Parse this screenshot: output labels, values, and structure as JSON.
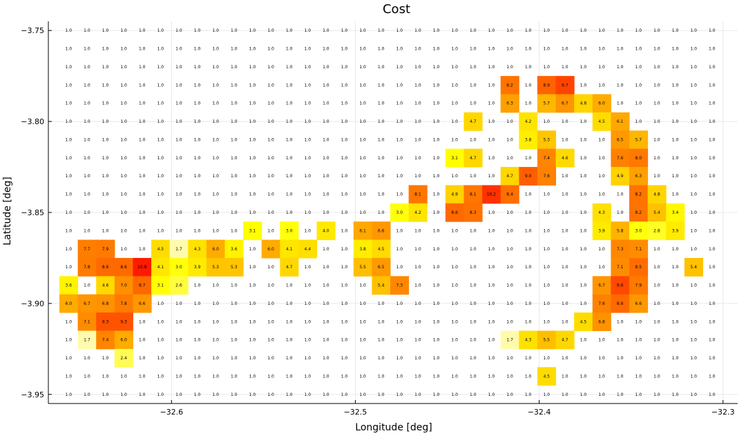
{
  "chart_data": {
    "type": "heatmap",
    "title": "Cost",
    "xlabel": "Longitude [deg]",
    "ylabel": "Latitude [deg]",
    "xlim": [
      -32.667,
      -32.292
    ],
    "ylim": [
      -3.955,
      -3.745
    ],
    "x_ticks": [
      -32.6,
      -32.5,
      -32.4,
      -32.3
    ],
    "x_tick_labels": [
      "−32.6",
      "−32.5",
      "−32.4",
      "−32.3"
    ],
    "y_ticks": [
      -3.75,
      -3.8,
      -3.85,
      -3.9,
      -3.95
    ],
    "y_tick_labels": [
      "−3.75",
      "−3.80",
      "−3.85",
      "−3.90",
      "−3.95"
    ],
    "x_centers": [
      -32.656,
      -32.646,
      -32.636,
      -32.626,
      -32.616,
      -32.606,
      -32.596,
      -32.586,
      -32.576,
      -32.566,
      -32.556,
      -32.546,
      -32.536,
      -32.526,
      -32.516,
      -32.506,
      -32.496,
      -32.486,
      -32.476,
      -32.466,
      -32.456,
      -32.446,
      -32.436,
      -32.426,
      -32.416,
      -32.406,
      -32.396,
      -32.386,
      -32.376,
      -32.366,
      -32.356,
      -32.346,
      -32.336,
      -32.326,
      -32.316,
      -32.306
    ],
    "y_centers": [
      -3.75,
      -3.76,
      -3.77,
      -3.78,
      -3.79,
      -3.8,
      -3.81,
      -3.82,
      -3.83,
      -3.84,
      -3.85,
      -3.86,
      -3.87,
      -3.88,
      -3.89,
      -3.9,
      -3.91,
      -3.92,
      -3.93,
      -3.94,
      -3.95
    ],
    "values": [
      [
        1.0,
        1.0,
        1.0,
        1.0,
        1.0,
        1.0,
        1.0,
        1.0,
        1.0,
        1.0,
        1.0,
        1.0,
        1.0,
        1.0,
        1.0,
        1.0,
        1.0,
        1.0,
        1.0,
        1.0,
        1.0,
        1.0,
        1.0,
        1.0,
        1.0,
        1.0,
        1.0,
        1.0,
        1.0,
        1.0,
        1.0,
        1.0,
        1.0,
        1.0,
        1.0,
        1.0
      ],
      [
        1.0,
        1.0,
        1.0,
        1.0,
        1.0,
        1.0,
        1.0,
        1.0,
        1.0,
        1.0,
        1.0,
        1.0,
        1.0,
        1.0,
        1.0,
        1.0,
        1.0,
        1.0,
        1.0,
        1.0,
        1.0,
        1.0,
        1.0,
        1.0,
        1.0,
        1.0,
        1.0,
        1.0,
        1.0,
        1.0,
        1.0,
        1.0,
        1.0,
        1.0,
        1.0,
        1.0
      ],
      [
        1.0,
        1.0,
        1.0,
        1.0,
        1.0,
        1.0,
        1.0,
        1.0,
        1.0,
        1.0,
        1.0,
        1.0,
        1.0,
        1.0,
        1.0,
        1.0,
        1.0,
        1.0,
        1.0,
        1.0,
        1.0,
        1.0,
        1.0,
        1.0,
        1.0,
        1.0,
        1.0,
        1.0,
        1.0,
        1.0,
        1.0,
        1.0,
        1.0,
        1.0,
        1.0,
        1.0
      ],
      [
        1.0,
        1.0,
        1.0,
        1.0,
        1.0,
        1.0,
        1.0,
        1.0,
        1.0,
        1.0,
        1.0,
        1.0,
        1.0,
        1.0,
        1.0,
        1.0,
        1.0,
        1.0,
        1.0,
        1.0,
        1.0,
        1.0,
        1.0,
        1.0,
        8.2,
        1.0,
        8.9,
        9.7,
        1.0,
        1.0,
        1.0,
        1.0,
        1.0,
        1.0,
        1.0,
        1.0
      ],
      [
        1.0,
        1.0,
        1.0,
        1.0,
        1.0,
        1.0,
        1.0,
        1.0,
        1.0,
        1.0,
        1.0,
        1.0,
        1.0,
        1.0,
        1.0,
        1.0,
        1.0,
        1.0,
        1.0,
        1.0,
        1.0,
        1.0,
        1.0,
        1.0,
        6.3,
        1.0,
        5.7,
        6.7,
        4.8,
        6.0,
        1.0,
        1.0,
        1.0,
        1.0,
        1.0,
        1.0
      ],
      [
        1.0,
        1.0,
        1.0,
        1.0,
        1.0,
        1.0,
        1.0,
        1.0,
        1.0,
        1.0,
        1.0,
        1.0,
        1.0,
        1.0,
        1.0,
        1.0,
        1.0,
        1.0,
        1.0,
        1.0,
        1.0,
        1.0,
        4.7,
        1.0,
        1.0,
        4.2,
        1.0,
        1.0,
        1.0,
        4.5,
        6.1,
        1.0,
        1.0,
        1.0,
        1.0,
        1.0
      ],
      [
        1.0,
        1.0,
        1.0,
        1.0,
        1.0,
        1.0,
        1.0,
        1.0,
        1.0,
        1.0,
        1.0,
        1.0,
        1.0,
        1.0,
        1.0,
        1.0,
        1.0,
        1.0,
        1.0,
        1.0,
        1.0,
        1.0,
        1.0,
        1.0,
        1.0,
        3.8,
        5.3,
        1.0,
        1.0,
        1.0,
        6.5,
        5.7,
        1.0,
        1.0,
        1.0,
        1.0
      ],
      [
        1.0,
        1.0,
        1.0,
        1.0,
        1.0,
        1.0,
        1.0,
        1.0,
        1.0,
        1.0,
        1.0,
        1.0,
        1.0,
        1.0,
        1.0,
        1.0,
        1.0,
        1.0,
        1.0,
        1.0,
        1.0,
        3.1,
        4.7,
        1.0,
        1.0,
        1.0,
        7.4,
        4.6,
        1.0,
        1.0,
        7.6,
        8.0,
        1.0,
        1.0,
        1.0,
        1.0
      ],
      [
        1.0,
        1.0,
        1.0,
        1.0,
        1.0,
        1.0,
        1.0,
        1.0,
        1.0,
        1.0,
        1.0,
        1.0,
        1.0,
        1.0,
        1.0,
        1.0,
        1.0,
        1.0,
        1.0,
        1.0,
        1.0,
        1.0,
        1.0,
        1.0,
        4.7,
        9.0,
        7.6,
        1.0,
        1.0,
        1.0,
        4.9,
        6.3,
        1.0,
        1.0,
        1.0,
        1.0
      ],
      [
        1.0,
        1.0,
        1.0,
        1.0,
        1.0,
        1.0,
        1.0,
        1.0,
        1.0,
        1.0,
        1.0,
        1.0,
        1.0,
        1.0,
        1.0,
        1.0,
        1.0,
        1.0,
        1.0,
        8.1,
        1.0,
        4.9,
        8.1,
        10.2,
        8.4,
        1.0,
        1.0,
        1.0,
        1.0,
        1.0,
        1.0,
        8.2,
        4.8,
        1.0,
        1.0,
        1.0
      ],
      [
        1.0,
        1.0,
        1.0,
        1.0,
        1.0,
        1.0,
        1.0,
        1.0,
        1.0,
        1.0,
        1.0,
        1.0,
        1.0,
        1.0,
        1.0,
        1.0,
        1.0,
        1.0,
        3.0,
        4.2,
        1.0,
        8.6,
        8.3,
        1.0,
        1.0,
        1.0,
        1.0,
        1.0,
        1.0,
        4.3,
        1.0,
        8.2,
        5.4,
        3.4,
        1.0,
        1.0
      ],
      [
        1.0,
        1.0,
        1.0,
        1.0,
        1.0,
        1.0,
        1.0,
        1.0,
        1.0,
        1.0,
        3.1,
        1.0,
        3.0,
        1.0,
        4.0,
        1.0,
        6.1,
        6.6,
        1.0,
        1.0,
        1.0,
        1.0,
        1.0,
        1.0,
        1.0,
        1.0,
        1.0,
        1.0,
        1.0,
        3.9,
        5.8,
        3.0,
        2.8,
        3.9,
        1.0,
        1.0
      ],
      [
        1.0,
        7.7,
        7.9,
        1.0,
        1.0,
        4.5,
        1.7,
        4.3,
        6.0,
        3.6,
        1.0,
        6.0,
        4.1,
        4.4,
        1.0,
        1.0,
        3.8,
        4.5,
        1.0,
        1.0,
        1.0,
        1.0,
        1.0,
        1.0,
        1.0,
        1.0,
        1.0,
        1.0,
        1.0,
        1.0,
        7.3,
        7.1,
        1.0,
        1.0,
        1.0,
        1.0
      ],
      [
        1.0,
        7.8,
        8.6,
        8.6,
        10.8,
        4.1,
        3.0,
        3.9,
        5.3,
        5.3,
        1.0,
        1.0,
        4.7,
        1.0,
        1.0,
        1.0,
        5.5,
        6.5,
        1.0,
        1.0,
        1.0,
        1.0,
        1.0,
        1.0,
        1.0,
        1.0,
        1.0,
        1.0,
        1.0,
        1.0,
        7.1,
        8.5,
        1.0,
        1.0,
        5.4,
        1.0
      ],
      [
        3.6,
        1.0,
        4.6,
        7.0,
        8.7,
        3.1,
        2.6,
        1.0,
        1.0,
        1.0,
        1.0,
        1.0,
        1.0,
        1.0,
        1.0,
        1.0,
        1.0,
        5.4,
        7.3,
        1.0,
        1.0,
        1.0,
        1.0,
        1.0,
        1.0,
        1.0,
        1.0,
        1.0,
        1.0,
        6.7,
        9.6,
        7.9,
        1.0,
        1.0,
        1.0,
        1.0
      ],
      [
        6.0,
        6.7,
        6.8,
        7.8,
        6.6,
        1.0,
        1.0,
        1.0,
        1.0,
        1.0,
        1.0,
        1.0,
        1.0,
        1.0,
        1.0,
        1.0,
        1.0,
        1.0,
        1.0,
        1.0,
        1.0,
        1.0,
        1.0,
        1.0,
        1.0,
        1.0,
        1.0,
        1.0,
        1.0,
        7.6,
        8.6,
        6.6,
        1.0,
        1.0,
        1.0,
        1.0
      ],
      [
        1.0,
        7.1,
        9.3,
        9.3,
        1.0,
        1.0,
        1.0,
        1.0,
        1.0,
        1.0,
        1.0,
        1.0,
        1.0,
        1.0,
        1.0,
        1.0,
        1.0,
        1.0,
        1.0,
        1.0,
        1.0,
        1.0,
        1.0,
        1.0,
        1.0,
        1.0,
        1.0,
        1.0,
        4.5,
        6.8,
        1.0,
        1.0,
        1.0,
        1.0,
        1.0,
        1.0
      ],
      [
        1.0,
        1.7,
        7.4,
        6.0,
        1.0,
        1.0,
        1.0,
        1.0,
        1.0,
        1.0,
        1.0,
        1.0,
        1.0,
        1.0,
        1.0,
        1.0,
        1.0,
        1.0,
        1.0,
        1.0,
        1.0,
        1.0,
        1.0,
        1.0,
        1.7,
        4.3,
        5.5,
        4.7,
        1.0,
        1.0,
        1.0,
        1.0,
        1.0,
        1.0,
        1.0,
        1.0
      ],
      [
        1.0,
        1.0,
        1.0,
        2.4,
        1.0,
        1.0,
        1.0,
        1.0,
        1.0,
        1.0,
        1.0,
        1.0,
        1.0,
        1.0,
        1.0,
        1.0,
        1.0,
        1.0,
        1.0,
        1.0,
        1.0,
        1.0,
        1.0,
        1.0,
        1.0,
        1.0,
        1.0,
        1.0,
        1.0,
        1.0,
        1.0,
        1.0,
        1.0,
        1.0,
        1.0,
        1.0
      ],
      [
        1.0,
        1.0,
        1.0,
        1.0,
        1.0,
        1.0,
        1.0,
        1.0,
        1.0,
        1.0,
        1.0,
        1.0,
        1.0,
        1.0,
        1.0,
        1.0,
        1.0,
        1.0,
        1.0,
        1.0,
        1.0,
        1.0,
        1.0,
        1.0,
        1.0,
        1.0,
        4.5,
        1.0,
        1.0,
        1.0,
        1.0,
        1.0,
        1.0,
        1.0,
        1.0,
        1.0
      ],
      [
        1.0,
        1.0,
        1.0,
        1.0,
        1.0,
        1.0,
        1.0,
        1.0,
        1.0,
        1.0,
        1.0,
        1.0,
        1.0,
        1.0,
        1.0,
        1.0,
        1.0,
        1.0,
        1.0,
        1.0,
        1.0,
        1.0,
        1.0,
        1.0,
        1.0,
        1.0,
        1.0,
        1.0,
        1.0,
        1.0,
        1.0,
        1.0,
        1.0,
        1.0,
        1.0,
        1.0
      ]
    ],
    "color_scale": "white-yellow-orange-red",
    "grid": true,
    "legend": "none",
    "colors": {
      "low": "#ffffff",
      "pale": "#fffaa0",
      "yellow": "#ffff00",
      "gold": "#ffd000",
      "orange": "#ff9900",
      "dark_orange": "#ff6600",
      "red": "#ff1a00"
    }
  }
}
